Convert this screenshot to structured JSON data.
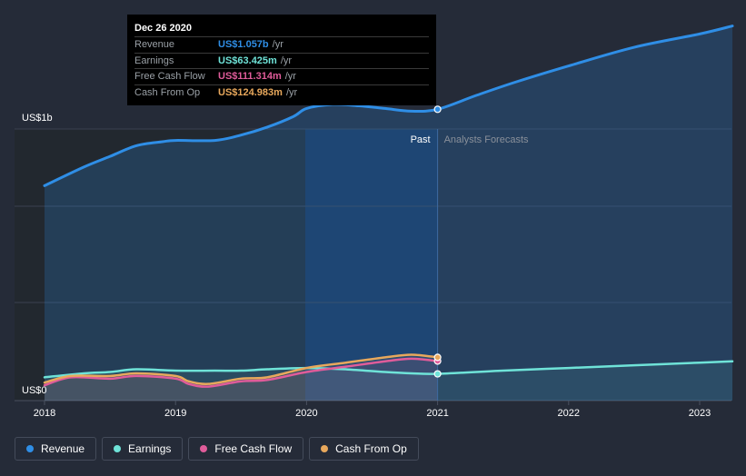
{
  "tooltip": {
    "date": "Dec 26 2020",
    "rows": [
      {
        "label": "Revenue",
        "value": "US$1.057b",
        "unit": "/yr",
        "color": "#2f8ee6"
      },
      {
        "label": "Earnings",
        "value": "US$63.425m",
        "unit": "/yr",
        "color": "#6fe3d8"
      },
      {
        "label": "Free Cash Flow",
        "value": "US$111.314m",
        "unit": "/yr",
        "color": "#e05c9a"
      },
      {
        "label": "Cash From Op",
        "value": "US$124.983m",
        "unit": "/yr",
        "color": "#e8a85c"
      }
    ]
  },
  "legend": [
    {
      "label": "Revenue",
      "color": "#2f8ee6"
    },
    {
      "label": "Earnings",
      "color": "#6fe3d8"
    },
    {
      "label": "Free Cash Flow",
      "color": "#e05c9a"
    },
    {
      "label": "Cash From Op",
      "color": "#e8a85c"
    }
  ],
  "chart_data": {
    "type": "area",
    "y_label_top": "US$1b",
    "y_label_bottom": "US$0",
    "ylim": [
      0,
      1.4
    ],
    "xlim": [
      2018,
      2023.25
    ],
    "x_ticks": [
      "2018",
      "2019",
      "2020",
      "2021",
      "2022",
      "2023"
    ],
    "x_tick_values": [
      2018,
      2019,
      2020,
      2021,
      2022,
      2023
    ],
    "divider_x": 2021.0,
    "highlight_start": 2019.99,
    "past_label": "Past",
    "forecast_label": "Analysts Forecasts",
    "series": [
      {
        "name": "Revenue",
        "color": "#2f8ee6",
        "filled": true,
        "marker_x": 2021.0,
        "x": [
          2018.0,
          2018.3,
          2018.5,
          2018.7,
          2018.9,
          2019.0,
          2019.3,
          2019.5,
          2019.7,
          2019.9,
          2020.0,
          2020.2,
          2020.4,
          2020.6,
          2020.8,
          2021.0,
          2021.3,
          2021.6,
          2022.0,
          2022.5,
          2023.0,
          2023.25
        ],
        "values": [
          0.77,
          0.84,
          0.88,
          0.92,
          0.935,
          0.94,
          0.94,
          0.96,
          0.99,
          1.03,
          1.06,
          1.075,
          1.07,
          1.06,
          1.05,
          1.057,
          1.11,
          1.16,
          1.22,
          1.29,
          1.34,
          1.37
        ]
      },
      {
        "name": "Earnings",
        "color": "#6fe3d8",
        "filled": false,
        "marker_x": 2021.0,
        "x": [
          2018.0,
          2018.3,
          2018.5,
          2018.7,
          2019.0,
          2019.3,
          2019.5,
          2019.7,
          2020.0,
          2020.3,
          2020.6,
          2020.8,
          2021.0,
          2021.5,
          2022.0,
          2022.5,
          2023.0,
          2023.25
        ],
        "values": [
          0.05,
          0.065,
          0.07,
          0.08,
          0.075,
          0.075,
          0.075,
          0.08,
          0.085,
          0.08,
          0.07,
          0.065,
          0.063,
          0.075,
          0.085,
          0.095,
          0.105,
          0.11
        ]
      },
      {
        "name": "Free Cash Flow",
        "color": "#e05c9a",
        "filled": false,
        "marker_x": 2021.0,
        "x": [
          2018.0,
          2018.2,
          2018.5,
          2018.7,
          2019.0,
          2019.1,
          2019.25,
          2019.5,
          2019.7,
          2020.0,
          2020.3,
          2020.6,
          2020.8,
          2021.0
        ],
        "values": [
          0.02,
          0.05,
          0.045,
          0.055,
          0.045,
          0.025,
          0.015,
          0.035,
          0.04,
          0.07,
          0.09,
          0.11,
          0.12,
          0.111
        ]
      },
      {
        "name": "Cash From Op",
        "color": "#e8a85c",
        "filled": false,
        "marker_x": 2021.0,
        "x": [
          2018.0,
          2018.2,
          2018.5,
          2018.7,
          2019.0,
          2019.1,
          2019.25,
          2019.5,
          2019.7,
          2020.0,
          2020.3,
          2020.6,
          2020.8,
          2021.0
        ],
        "values": [
          0.03,
          0.055,
          0.055,
          0.065,
          0.055,
          0.035,
          0.025,
          0.045,
          0.05,
          0.085,
          0.105,
          0.125,
          0.135,
          0.125
        ]
      }
    ]
  }
}
